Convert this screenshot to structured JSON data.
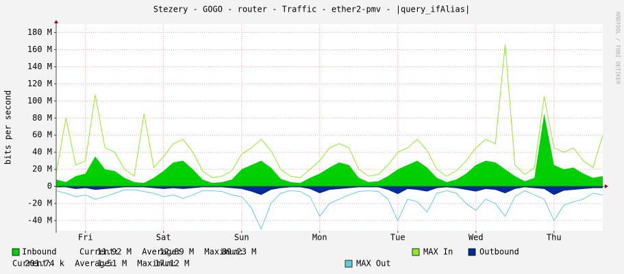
{
  "chart_data": {
    "type": "line",
    "title": "Stezery - GOGO - router - Traffic - ether2-pmv - |query_ifAlias|",
    "ylabel": "bits per second",
    "watermark": "RRDTOOL / TOBI OETIKER",
    "x": [
      3,
      6,
      9,
      12,
      15,
      18,
      21,
      24,
      27,
      30,
      33,
      36,
      39,
      42,
      45,
      48,
      51,
      54,
      57,
      60,
      63,
      66,
      69,
      72,
      75,
      78,
      81,
      84,
      87,
      90,
      93,
      96,
      99,
      102,
      105,
      108,
      111,
      114,
      117,
      120,
      123,
      126,
      129,
      132,
      135,
      138,
      141,
      144,
      147,
      150,
      153,
      156,
      159,
      162,
      165,
      168,
      171
    ],
    "xlim": [
      3,
      171
    ],
    "xticks": [
      {
        "value": 12,
        "label": "Fri"
      },
      {
        "value": 36,
        "label": "Sat"
      },
      {
        "value": 60,
        "label": "Sun"
      },
      {
        "value": 84,
        "label": "Mon"
      },
      {
        "value": 108,
        "label": "Tue"
      },
      {
        "value": 132,
        "label": "Wed"
      },
      {
        "value": 156,
        "label": "Thu"
      }
    ],
    "ylim": [
      -52,
      190
    ],
    "yticks": [
      {
        "value": -40,
        "label": "-40 M"
      },
      {
        "value": -20,
        "label": "-20 M"
      },
      0,
      {
        "value": 20,
        "label": "20 M"
      },
      {
        "value": 40,
        "label": "40 M"
      },
      {
        "value": 60,
        "label": "60 M"
      },
      {
        "value": 80,
        "label": "80 M"
      },
      {
        "value": 100,
        "label": "100 M"
      },
      {
        "value": 120,
        "label": "120 M"
      },
      {
        "value": 140,
        "label": "140 M"
      },
      {
        "value": 160,
        "label": "160 M"
      },
      {
        "value": 180,
        "label": "180 M"
      }
    ],
    "grid": true,
    "series": [
      {
        "name": "Inbound",
        "style": "area",
        "color": "#00cf00",
        "stats": [
          {
            "label": "Current:",
            "value": "11.92 M"
          },
          {
            "label": "Average:",
            "value": "12.89 M"
          },
          {
            "label": "Maximum:",
            "value": "89.23 M"
          }
        ],
        "values": [
          8,
          5,
          12,
          15,
          35,
          20,
          18,
          10,
          5,
          4,
          10,
          18,
          28,
          30,
          20,
          8,
          4,
          5,
          8,
          20,
          25,
          30,
          22,
          9,
          5,
          4,
          10,
          15,
          22,
          28,
          25,
          10,
          5,
          6,
          12,
          20,
          25,
          30,
          22,
          10,
          5,
          8,
          15,
          25,
          30,
          28,
          20,
          12,
          6,
          10,
          85,
          25,
          20,
          22,
          15,
          10,
          12
        ]
      },
      {
        "name": "MAX In",
        "style": "line",
        "color": "#8fe82a",
        "values": [
          15,
          80,
          25,
          30,
          107,
          45,
          40,
          20,
          12,
          85,
          22,
          35,
          50,
          55,
          40,
          18,
          10,
          12,
          18,
          38,
          45,
          55,
          42,
          20,
          12,
          10,
          20,
          30,
          45,
          50,
          45,
          20,
          12,
          14,
          25,
          40,
          45,
          55,
          42,
          20,
          12,
          18,
          30,
          45,
          55,
          50,
          166,
          25,
          14,
          22,
          105,
          45,
          40,
          45,
          30,
          22,
          60
        ]
      },
      {
        "name": "Outbound",
        "style": "area",
        "color": "#002a97",
        "stats": [
          {
            "label": "Current:",
            "value": "201.74 k"
          },
          {
            "label": "Average:",
            "value": "1.51 M"
          },
          {
            "label": "Maximum:",
            "value": "17.12 M"
          }
        ],
        "values": [
          -1,
          -1,
          -3,
          -2,
          -4,
          -3,
          -2,
          -1,
          -1,
          -1,
          -2,
          -3,
          -2,
          -3,
          -2,
          -1,
          -1,
          -1,
          -2,
          -3,
          -6,
          -10,
          -4,
          -2,
          -1,
          -1,
          -3,
          -8,
          -4,
          -3,
          -2,
          -1,
          -1,
          -1,
          -4,
          -9,
          -3,
          -4,
          -6,
          -2,
          -1,
          -2,
          -4,
          -6,
          -3,
          -4,
          -8,
          -3,
          -1,
          -2,
          -3,
          -10,
          -5,
          -4,
          -3,
          -2,
          -2
        ]
      },
      {
        "name": "MAX Out",
        "style": "line",
        "color": "#62cdd6",
        "values": [
          -5,
          -8,
          -12,
          -10,
          -15,
          -12,
          -8,
          -4,
          -4,
          -6,
          -8,
          -12,
          -10,
          -14,
          -10,
          -5,
          -5,
          -6,
          -10,
          -12,
          -25,
          -50,
          -20,
          -8,
          -5,
          -6,
          -12,
          -35,
          -20,
          -15,
          -10,
          -6,
          -5,
          -6,
          -15,
          -40,
          -15,
          -18,
          -30,
          -8,
          -5,
          -8,
          -20,
          -28,
          -15,
          -20,
          -35,
          -12,
          -5,
          -10,
          -15,
          -40,
          -22,
          -18,
          -15,
          -8,
          -10
        ]
      }
    ]
  }
}
